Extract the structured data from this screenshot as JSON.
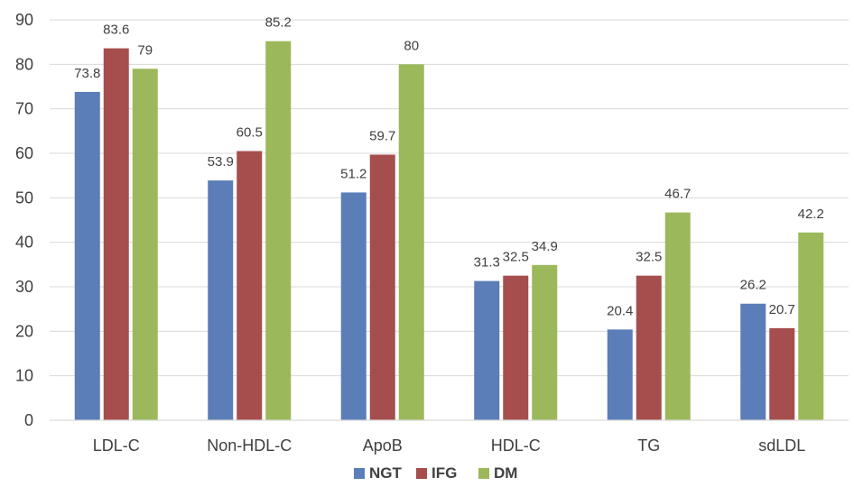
{
  "chart_data": {
    "type": "bar",
    "title": "",
    "xlabel": "",
    "ylabel": "",
    "ylim": [
      0,
      90
    ],
    "yticks": [
      0,
      10,
      20,
      30,
      40,
      50,
      60,
      70,
      80,
      90
    ],
    "grid": true,
    "legend": "bottom",
    "categories": [
      "LDL-C",
      "Non-HDL-C",
      "ApoB",
      "HDL-C",
      "TG",
      "sdLDL"
    ],
    "series": [
      {
        "name": "NGT",
        "color": "#5B7DB8",
        "values": [
          73.8,
          53.9,
          51.2,
          31.3,
          20.4,
          26.2
        ]
      },
      {
        "name": "IFG",
        "color": "#A64D4D",
        "values": [
          83.6,
          60.5,
          59.7,
          32.5,
          32.5,
          20.7
        ]
      },
      {
        "name": "DM",
        "color": "#9BB85B",
        "values": [
          79,
          85.2,
          80,
          34.9,
          46.7,
          42.2
        ]
      }
    ]
  }
}
